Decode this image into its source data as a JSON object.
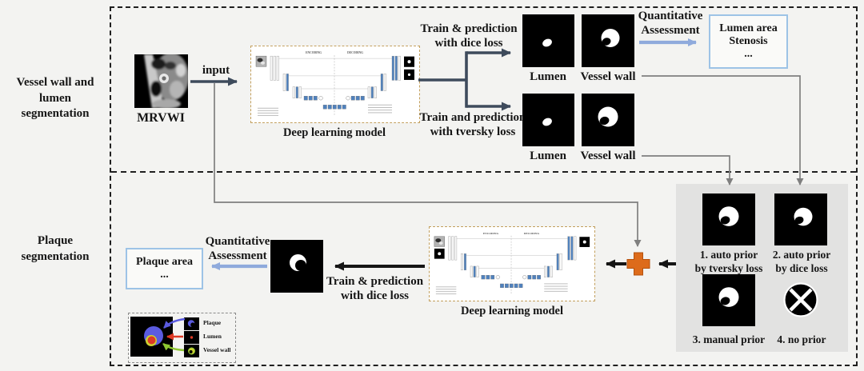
{
  "colors": {
    "arrow_dark": "#3e4b5c",
    "arrow_black": "#151515",
    "arrow_light_blue": "#8faadc",
    "result_box_border": "#9dc3e6",
    "plus_orange": "#dd6b1b",
    "plus_orange_edge": "#b4520e",
    "connector_gray": "#7f7f7f",
    "prior_panel_gray": "#e2e2e1",
    "legend_plaque_blue": "#5b5be0",
    "legend_lumen_red": "#dd3a25",
    "legend_vessel_green": "#8fc832",
    "legend_vessel_yellow": "#cdd231",
    "unet_bar_blue": "#4f81bd"
  },
  "left_labels": {
    "top_line1": "Vessel wall and lumen",
    "top_line2": "segmentation",
    "bottom_line1": "Plaque",
    "bottom_line2": "segmentation"
  },
  "model": {
    "label": "Deep learning model",
    "encoding": "ENCODING",
    "decoding": "DECODING"
  },
  "top_section": {
    "mrvwi_label": "MRVWI",
    "input_label": "input",
    "branch_dice_line1": "Train & prediction",
    "branch_dice_line2": "with dice loss",
    "branch_tversky_line1": "Train and prediction",
    "branch_tversky_line2": "with tversky loss",
    "dice_lumen_label": "Lumen",
    "dice_vessel_label": "Vessel wall",
    "tversky_lumen_label": "Lumen",
    "tversky_vessel_label": "Vessel wall",
    "qa_line1": "Quantitative",
    "qa_line2": "Assessment",
    "result_line1": "Lumen area",
    "result_line2": "Stenosis",
    "result_line3": "..."
  },
  "bottom_section": {
    "prior1_line1": "1. auto prior",
    "prior1_line2": "by tversky loss",
    "prior2_line1": "2. auto prior",
    "prior2_line2": "by dice loss",
    "prior3_label": "3. manual prior",
    "prior4_label": "4. no prior",
    "train_line1": "Train & prediction",
    "train_line2": "with dice loss",
    "qa_line1": "Quantitative",
    "qa_line2": "Assessment",
    "result_line1": "Plaque area",
    "result_line2": "...",
    "legend_plaque": "Plaque",
    "legend_lumen": "Lumen",
    "legend_vessel": "Vessel wall"
  }
}
